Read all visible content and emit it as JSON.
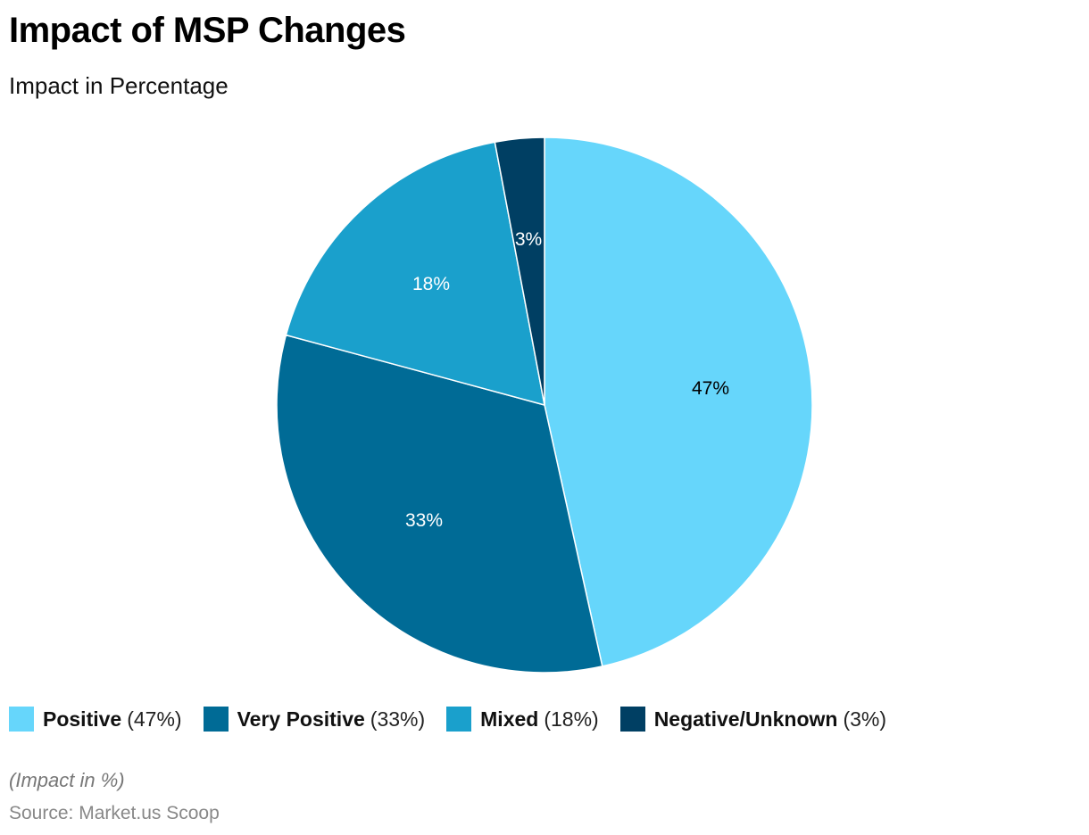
{
  "header": {
    "title": "Impact of MSP Changes",
    "subtitle": "Impact in Percentage"
  },
  "chart_data": {
    "type": "pie",
    "title": "Impact of MSP Changes",
    "subtitle": "Impact in Percentage",
    "categories": [
      "Positive",
      "Very Positive",
      "Mixed",
      "Negative/Unknown"
    ],
    "values": [
      47,
      33,
      18,
      3
    ],
    "unit": "%",
    "colors": [
      "#66d6fb",
      "#006b96",
      "#1aa0cc",
      "#003f63"
    ],
    "start_angle": "12 o'clock, clockwise",
    "legend_position": "bottom"
  },
  "slices": [
    {
      "label": "47%",
      "color": "#66d6fb",
      "text_color": "#000000"
    },
    {
      "label": "33%",
      "color": "#006b96",
      "text_color": "#ffffff"
    },
    {
      "label": "18%",
      "color": "#1aa0cc",
      "text_color": "#ffffff"
    },
    {
      "label": "3%",
      "color": "#003f63",
      "text_color": "#ffffff"
    }
  ],
  "legend": [
    {
      "name": "Positive",
      "value": "(47%)"
    },
    {
      "name": "Very Positive",
      "value": "(33%)"
    },
    {
      "name": "Mixed",
      "value": "(18%)"
    },
    {
      "name": "Negative/Unknown",
      "value": "(3%)"
    }
  ],
  "footer": {
    "note": "(Impact in %)",
    "source": "Source: Market.us Scoop"
  }
}
